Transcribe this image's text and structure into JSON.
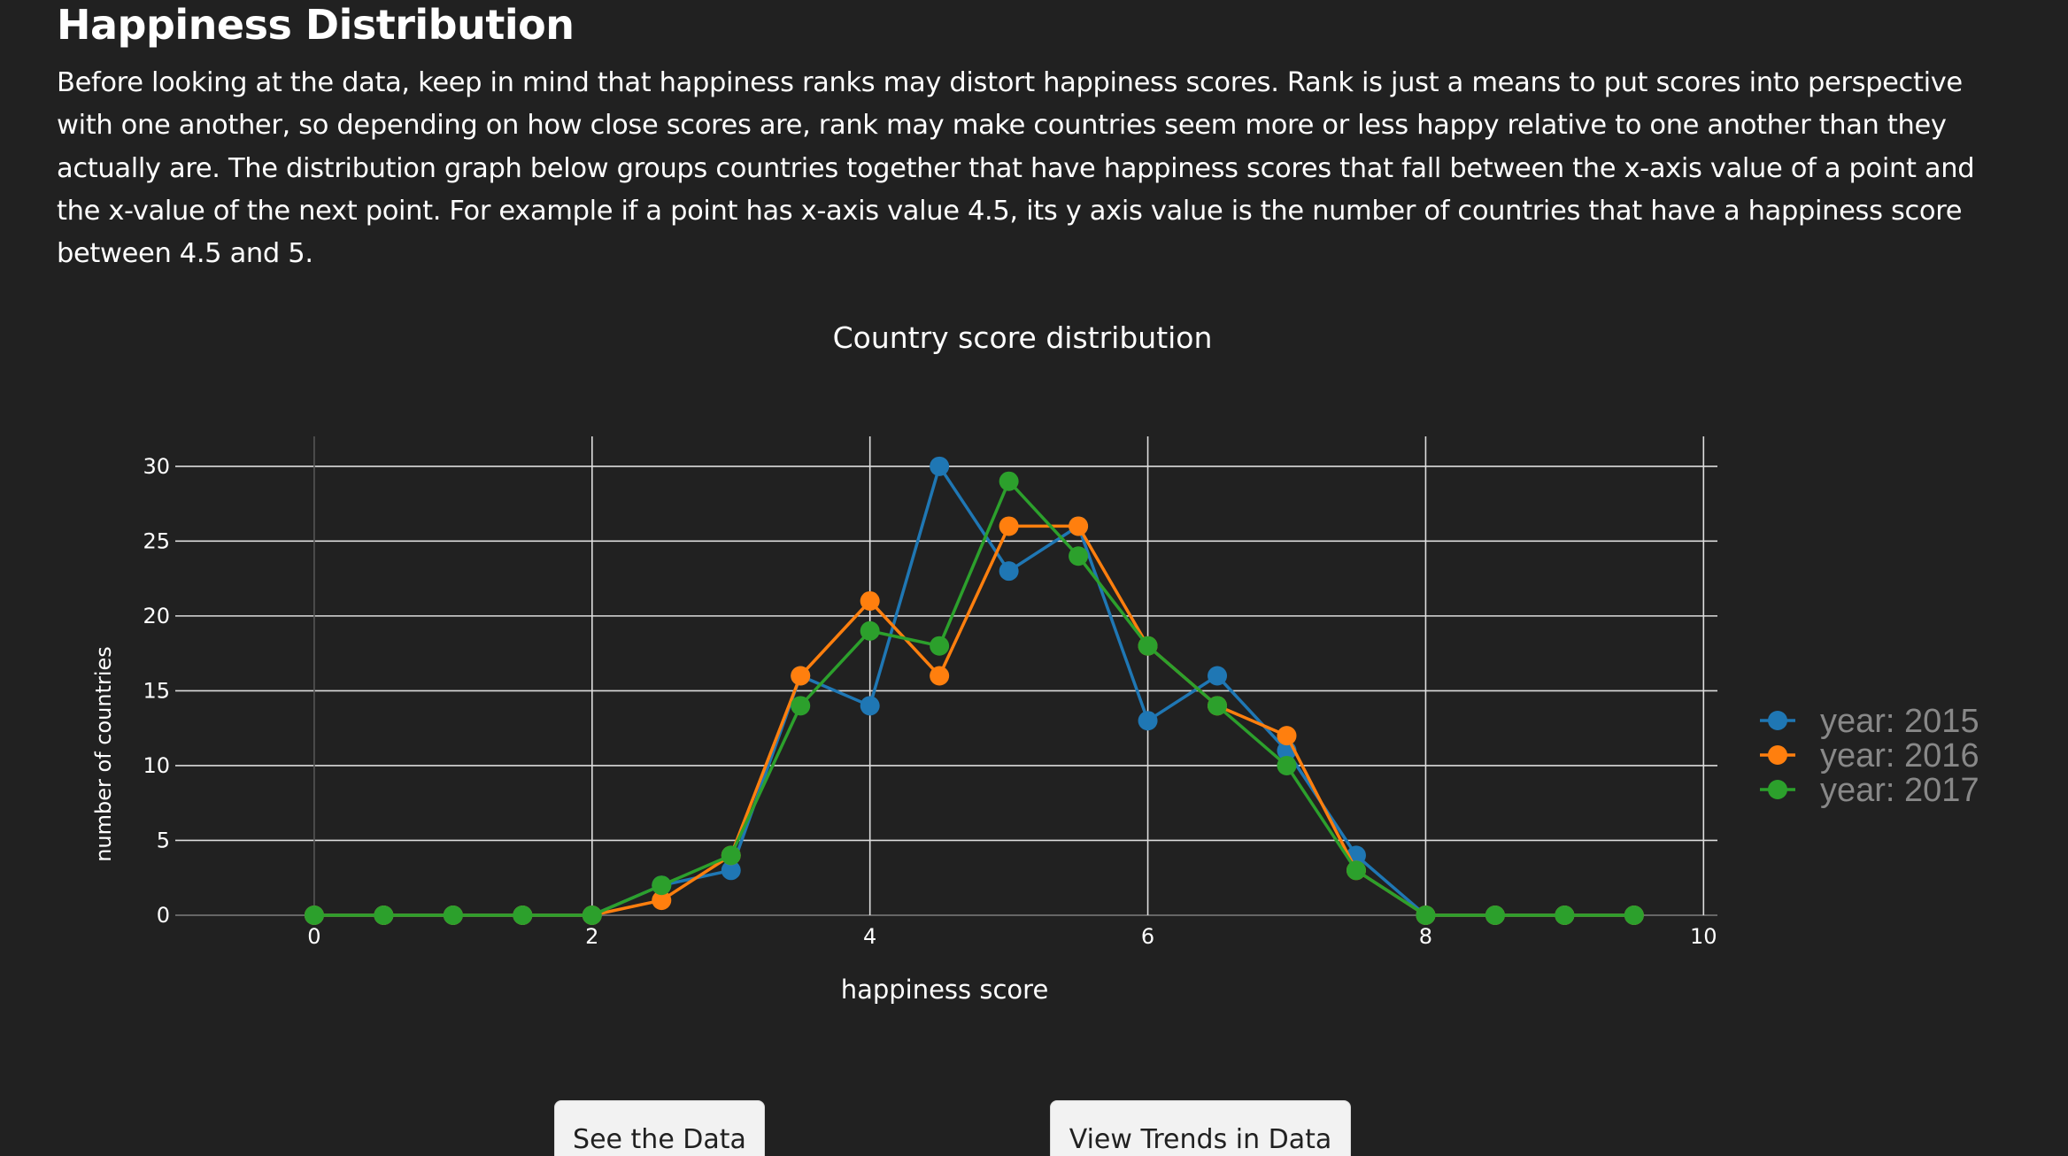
{
  "page": {
    "title": "Happiness Distribution",
    "intro": "Before looking at the data, keep in mind that happiness ranks may distort happiness scores. Rank is just a means to put scores into perspective with one another, so depending on how close scores are, rank may make countries seem more or less happy relative to one another than they actually are. The distribution graph below groups countries together that have happiness scores that fall between the x-axis value of a point and the x-value of the next point. For example if a point has x-axis value 4.5, its y axis value is the number of countries that have a happiness score between 4.5 and 5."
  },
  "chart_data": {
    "type": "line",
    "title": "Country score distribution",
    "xlabel": "happiness score",
    "ylabel": "number of countries",
    "xlim": [
      -1,
      10.1
    ],
    "ylim": [
      0,
      32
    ],
    "xticks": [
      0,
      2,
      4,
      6,
      8,
      10
    ],
    "yticks": [
      0,
      5,
      10,
      15,
      20,
      25,
      30
    ],
    "grid": true,
    "legend_position": "right",
    "x": [
      0,
      0.5,
      1,
      1.5,
      2,
      2.5,
      3,
      3.5,
      4,
      4.5,
      5,
      5.5,
      6,
      6.5,
      7,
      7.5,
      8,
      8.5,
      9,
      9.5
    ],
    "series": [
      {
        "name": "year: 2015",
        "color": "#1f77b4",
        "values": [
          0,
          0,
          0,
          0,
          0,
          2,
          3,
          16,
          14,
          30,
          23,
          26,
          13,
          16,
          11,
          4,
          0,
          0,
          0,
          0
        ]
      },
      {
        "name": "year: 2016",
        "color": "#ff7f0e",
        "values": [
          0,
          0,
          0,
          0,
          0,
          1,
          4,
          16,
          21,
          16,
          26,
          26,
          18,
          14,
          12,
          3,
          0,
          0,
          0,
          0
        ]
      },
      {
        "name": "year: 2017",
        "color": "#2ca02c",
        "values": [
          0,
          0,
          0,
          0,
          0,
          2,
          4,
          14,
          19,
          18,
          29,
          24,
          18,
          14,
          10,
          3,
          0,
          0,
          0,
          0
        ]
      }
    ]
  },
  "buttons": {
    "see_data": "See the Data",
    "view_trends": "View Trends in Data"
  }
}
